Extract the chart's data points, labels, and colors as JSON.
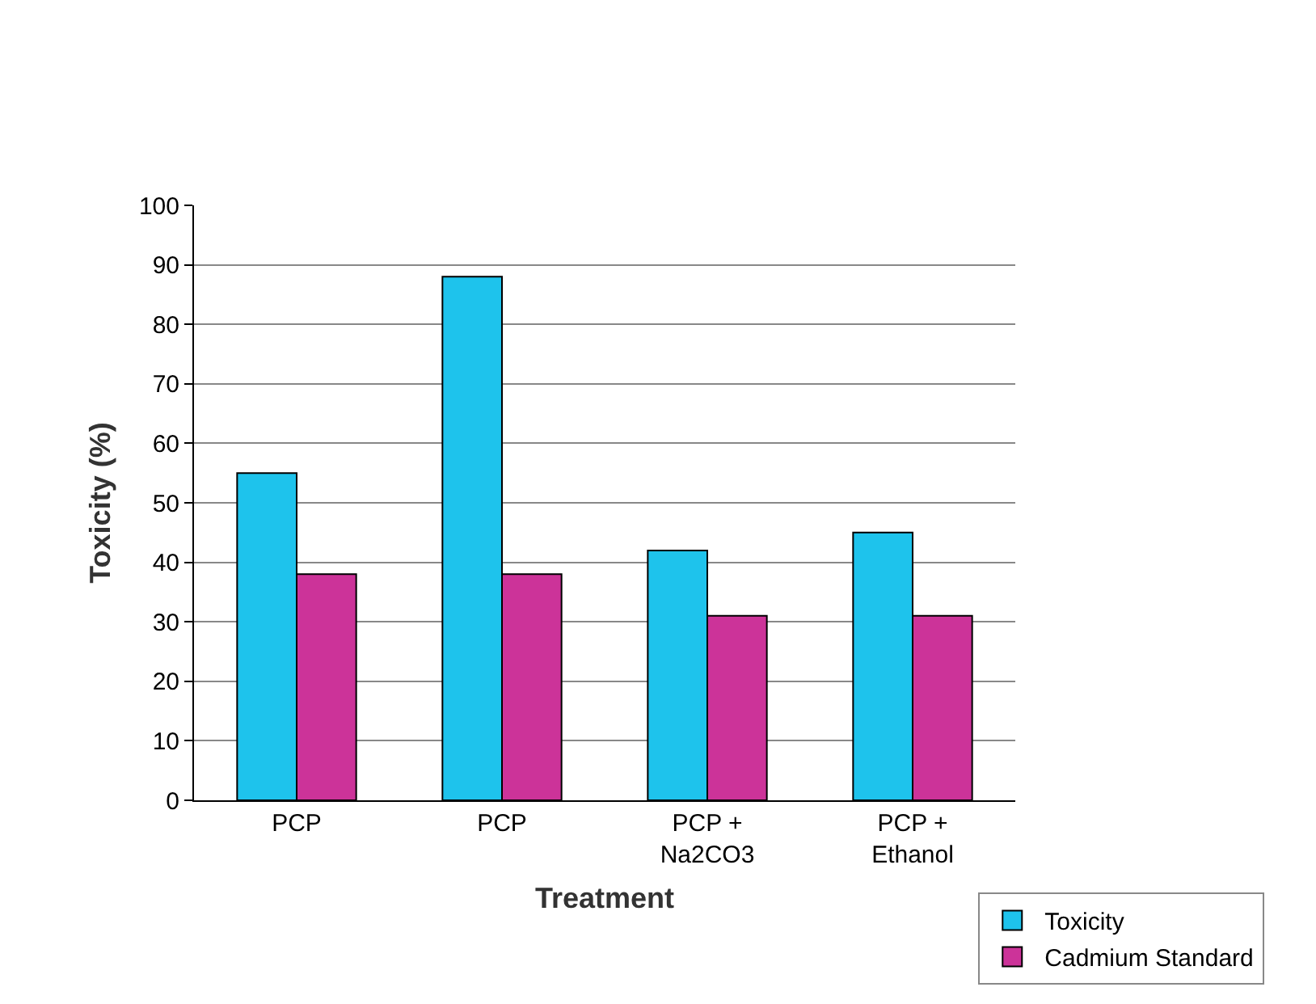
{
  "chart_data": {
    "type": "bar",
    "xlabel": "Treatment",
    "ylabel": "Toxicity (%)",
    "categories": [
      "PCP",
      "PCP",
      "PCP + Na2CO3",
      "PCP + Ethanol"
    ],
    "series": [
      {
        "name": "Toxicity",
        "color": "#1ec3ec",
        "values": [
          55,
          88,
          42,
          45
        ]
      },
      {
        "name": "Cadmium Standard",
        "color": "#cc3399",
        "values": [
          38,
          38,
          31,
          31
        ]
      }
    ],
    "ylim": [
      0,
      100
    ],
    "yticks": [
      0,
      10,
      20,
      30,
      40,
      50,
      60,
      70,
      80,
      90,
      100
    ],
    "grid": "y",
    "legend": "bottom right"
  }
}
